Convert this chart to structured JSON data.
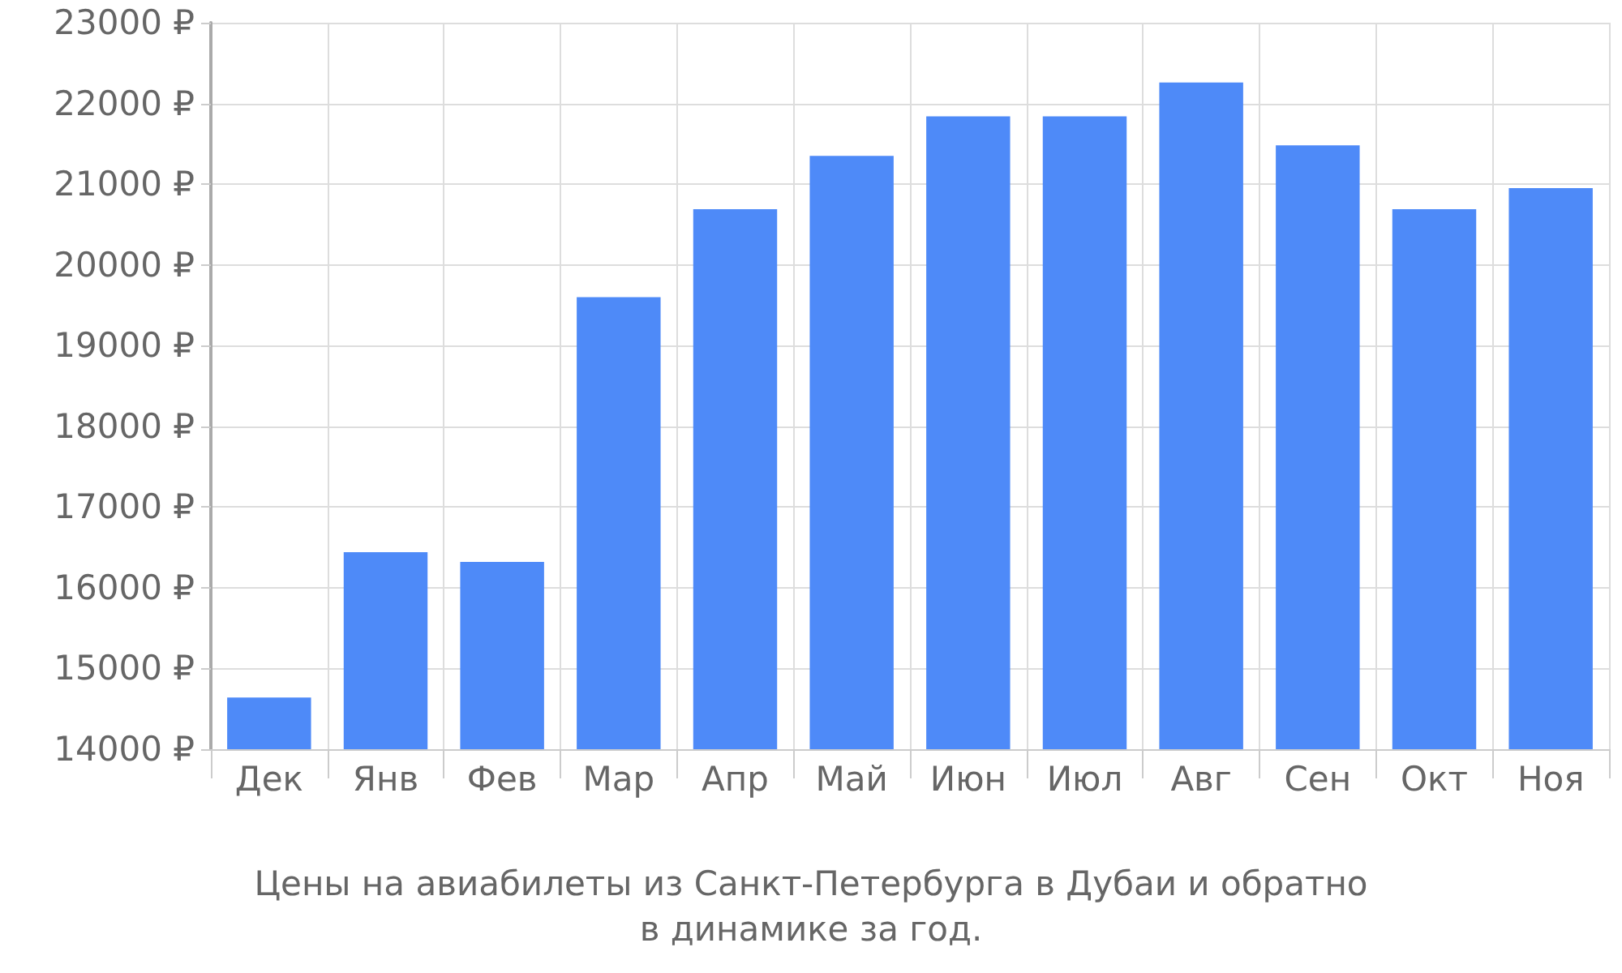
{
  "chart_data": {
    "type": "bar",
    "title": "Цены на авиабилеты из Санкт-Петербурга в Дубаи и обратно\nв динамике за год.",
    "categories": [
      "Дек",
      "Янв",
      "Фев",
      "Мар",
      "Апр",
      "Май",
      "Июн",
      "Июл",
      "Авг",
      "Сен",
      "Окт",
      "Ноя"
    ],
    "values": [
      14640,
      16440,
      16320,
      19600,
      20690,
      21350,
      21840,
      21840,
      22260,
      21480,
      20690,
      20950
    ],
    "color": "#4e8af8",
    "ylim": [
      14000,
      23000
    ],
    "yticks": [
      {
        "value": 14000,
        "label": "14000 ₽"
      },
      {
        "value": 15000,
        "label": "15000 ₽"
      },
      {
        "value": 16000,
        "label": "16000 ₽"
      },
      {
        "value": 17000,
        "label": "17000 ₽"
      },
      {
        "value": 18000,
        "label": "18000 ₽"
      },
      {
        "value": 19000,
        "label": "19000 ₽"
      },
      {
        "value": 20000,
        "label": "20000 ₽"
      },
      {
        "value": 21000,
        "label": "21000 ₽"
      },
      {
        "value": 22000,
        "label": "22000 ₽"
      },
      {
        "value": 23000,
        "label": "23000 ₽"
      }
    ],
    "grid": true
  }
}
